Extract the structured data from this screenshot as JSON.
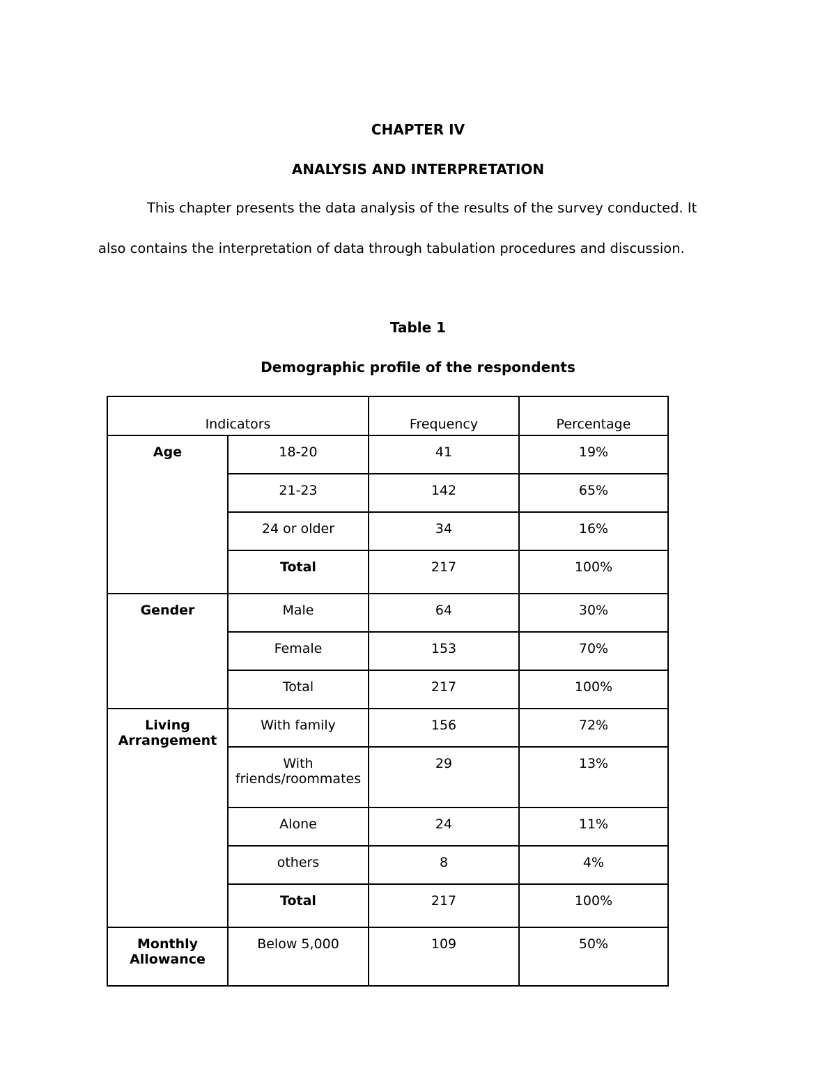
{
  "chapter": "CHAPTER IV",
  "title": "ANALYSIS AND INTERPRETATION",
  "intro_line1": "This chapter presents the data analysis of the results of the survey conducted. It",
  "intro_line2": "also contains the interpretation of data through tabulation procedures and discussion.",
  "table_label": "Table 1",
  "table_caption": "Demographic profile of the respondents",
  "table": {
    "headers": [
      "Indicators",
      "Frequency",
      "Percentage"
    ],
    "groups": [
      {
        "name": "Age",
        "rows": [
          {
            "label": "18-20",
            "frequency": "41",
            "percentage": "19%"
          },
          {
            "label": "21-23",
            "frequency": "142",
            "percentage": "65%"
          },
          {
            "label": "24 or older",
            "frequency": "34",
            "percentage": "16%"
          },
          {
            "label": "Total",
            "frequency": "217",
            "percentage": "100%"
          }
        ]
      },
      {
        "name": "Gender",
        "rows": [
          {
            "label": "Male",
            "frequency": "64",
            "percentage": "30%"
          },
          {
            "label": "Female",
            "frequency": "153",
            "percentage": "70%"
          },
          {
            "label": "Total",
            "frequency": "217",
            "percentage": "100%"
          }
        ]
      },
      {
        "name": "Living Arrangement",
        "rows": [
          {
            "label": "With family",
            "frequency": "156",
            "percentage": "72%"
          },
          {
            "label": "With friends/roommates",
            "frequency": "29",
            "percentage": "13%"
          },
          {
            "label": "Alone",
            "frequency": "24",
            "percentage": "11%"
          },
          {
            "label": "others",
            "frequency": "8",
            "percentage": "4%"
          },
          {
            "label": "Total",
            "frequency": "217",
            "percentage": "100%"
          }
        ]
      },
      {
        "name": "Monthly Allowance",
        "rows": [
          {
            "label": "Below 5,000",
            "frequency": "109",
            "percentage": "50%"
          }
        ]
      }
    ]
  }
}
